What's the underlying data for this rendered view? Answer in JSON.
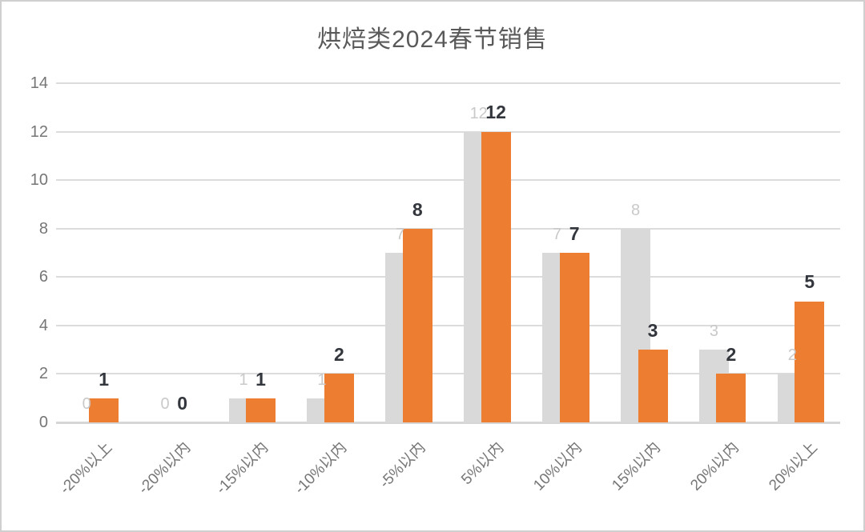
{
  "window": {
    "background": "#ffffff",
    "border_color": "#cfcfcf"
  },
  "chart_data": {
    "type": "bar",
    "title": "烘焙类2024春节销售",
    "title_color": "#595959",
    "categories": [
      "-20%以上",
      "-20%以内",
      "-15%以内",
      "-10%以内",
      "-5%以内",
      "5%以内",
      "10%以内",
      "15%以内",
      "20%以内",
      "20%以上"
    ],
    "series": [
      {
        "id": "gray-series",
        "color": "#d9d9d9",
        "label_color": "#c9c9c9",
        "label_bold": false,
        "values": [
          0,
          0,
          1,
          1,
          7,
          12,
          7,
          8,
          3,
          2
        ]
      },
      {
        "id": "orange-series",
        "color": "#ed7d31",
        "label_color": "#33373d",
        "label_bold": true,
        "values": [
          1,
          0,
          1,
          2,
          8,
          12,
          7,
          3,
          2,
          5
        ]
      }
    ],
    "ylim": [
      0,
      14
    ],
    "yticks": [
      0,
      2,
      4,
      6,
      8,
      10,
      12,
      14
    ],
    "grid": true,
    "gridline_color": "#dcdcdc",
    "baseline_color": "#d6d6d6",
    "axis_label_color": "#767676",
    "legend_position": "none",
    "data_labels": "outside-end",
    "xlabel": "",
    "ylabel": ""
  }
}
